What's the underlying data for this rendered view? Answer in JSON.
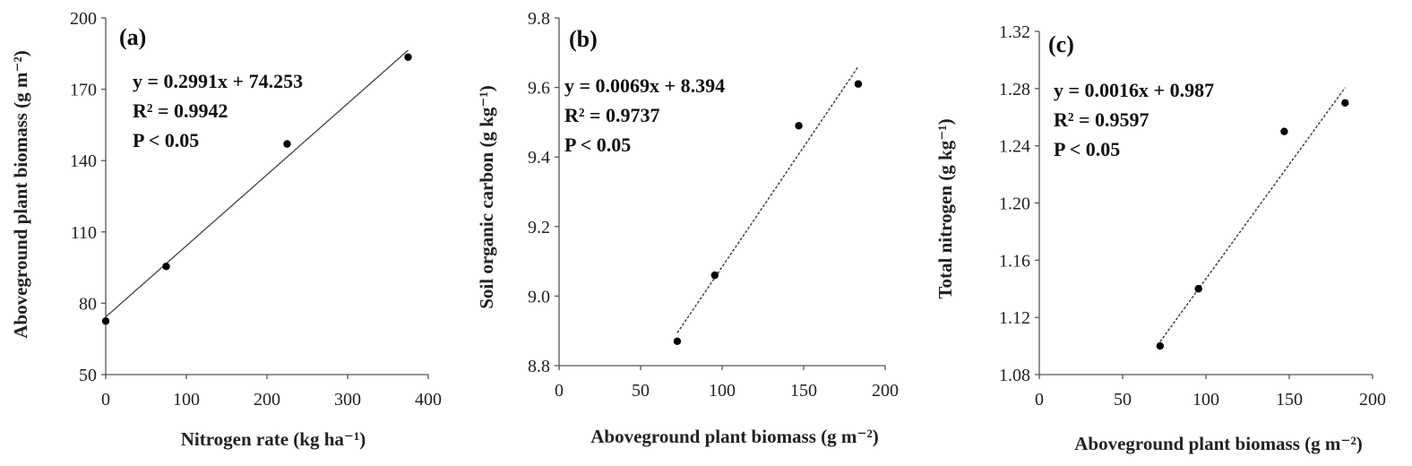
{
  "chart_data": [
    {
      "type": "scatter",
      "panel_label": "(a)",
      "xlabel": "Nitrogen rate (kg ha⁻¹)",
      "ylabel": "Aboveground plant biomass (g m⁻²)",
      "xlim": [
        0,
        400
      ],
      "ylim": [
        50,
        200
      ],
      "xticks": [
        "0",
        "100",
        "200",
        "300",
        "400"
      ],
      "yticks": [
        "50",
        "80",
        "110",
        "140",
        "170",
        "200"
      ],
      "x": [
        0,
        75,
        225,
        375
      ],
      "y": [
        72.5,
        95.5,
        147,
        183.5
      ],
      "trendline": {
        "slope": 0.2991,
        "intercept": 74.253,
        "x_range": [
          0,
          375
        ],
        "style": "solid"
      },
      "annotations": [
        "y = 0.2991x + 74.253",
        "R² = 0.9942",
        "P < 0.05"
      ]
    },
    {
      "type": "scatter",
      "panel_label": "(b)",
      "xlabel": "Aboveground plant biomass (g m⁻²)",
      "ylabel": "Soil organic carbon (g  kg⁻¹)",
      "xlim": [
        0,
        200
      ],
      "ylim": [
        8.8,
        9.8
      ],
      "xticks": [
        "0",
        "50",
        "100",
        "150",
        "200"
      ],
      "yticks": [
        "8.8",
        "9.0",
        "9.2",
        "9.4",
        "9.6",
        "9.8"
      ],
      "x": [
        72.5,
        95.5,
        147,
        183.5
      ],
      "y": [
        8.87,
        9.06,
        9.49,
        9.61
      ],
      "trendline": {
        "slope": 0.0069,
        "intercept": 8.394,
        "x_range": [
          72.5,
          183.5
        ],
        "style": "dashed"
      },
      "annotations": [
        "y = 0.0069x + 8.394",
        "R² = 0.9737",
        "P < 0.05"
      ]
    },
    {
      "type": "scatter",
      "panel_label": "(c)",
      "xlabel": "Aboveground plant biomass (g m⁻²)",
      "ylabel": "Total nitrogen (g kg⁻¹)",
      "xlim": [
        0,
        200
      ],
      "ylim": [
        1.08,
        1.32
      ],
      "xticks": [
        "0",
        "50",
        "100",
        "150",
        "200"
      ],
      "yticks": [
        "1.08",
        "1.12",
        "1.16",
        "1.20",
        "1.24",
        "1.28",
        "1.32"
      ],
      "x": [
        72.5,
        95.5,
        147,
        183.5
      ],
      "y": [
        1.1,
        1.14,
        1.25,
        1.27
      ],
      "trendline": {
        "slope": 0.0016,
        "intercept": 0.987,
        "x_range": [
          72.5,
          183.5
        ],
        "style": "dashed"
      },
      "annotations": [
        "y = 0.0016x + 0.987",
        "R² = 0.9597",
        "P < 0.05"
      ]
    }
  ]
}
